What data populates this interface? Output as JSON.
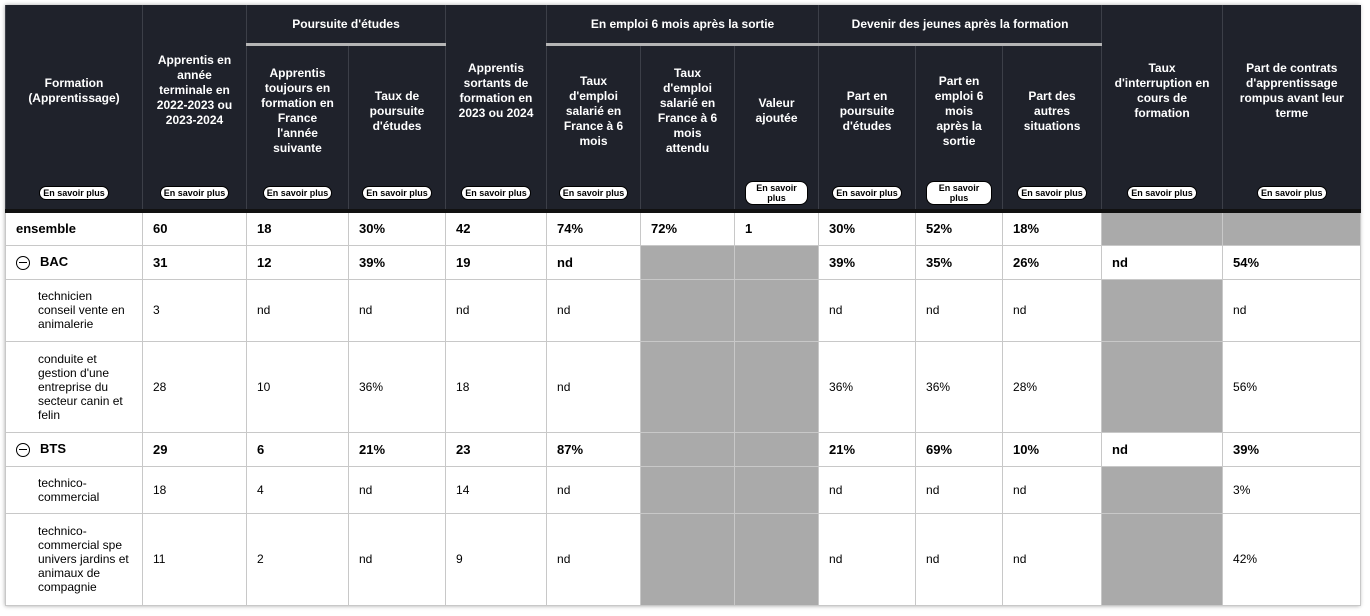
{
  "header": {
    "groups": [
      {
        "label": "Poursuite d'études",
        "start": 2,
        "span": 2
      },
      {
        "label": "En emploi 6 mois après la sortie",
        "start": 5,
        "span": 3
      },
      {
        "label": "Devenir des jeunes après la formation",
        "start": 8,
        "span": 3
      }
    ],
    "columns": [
      "Formation (Apprentissage)",
      "Apprentis en année terminale en 2022-2023 ou 2023-2024",
      "Apprentis toujours en formation en France l'année suivante",
      "Taux de poursuite d'études",
      "Apprentis sortants de formation en 2023 ou 2024",
      "Taux d'emploi salarié en France à 6 mois",
      "Taux d'emploi salarié en France à 6 mois attendu",
      "Valeur ajoutée",
      "Part en poursuite d'études",
      "Part en emploi 6 mois après la sortie",
      "Part des autres situations",
      "Taux d'interruption en cours de formation",
      "Part de contrats d'apprentissage rompus avant leur terme"
    ],
    "more": [
      "En savoir plus",
      "En savoir plus",
      "En savoir plus",
      "En savoir plus",
      "En savoir plus",
      "En savoir plus",
      null,
      "En savoir plus",
      "En savoir plus",
      "En savoir plus",
      "En savoir plus",
      "En savoir plus",
      "En savoir plus"
    ]
  },
  "table": {
    "rows": [
      {
        "label": "ensemble",
        "level": 0,
        "cells": [
          60,
          18,
          "30%",
          42,
          "74%",
          "72%",
          1,
          "30%",
          "52%",
          "18%",
          null,
          null
        ]
      },
      {
        "label": "BAC",
        "level": 1,
        "cells": [
          31,
          12,
          "39%",
          19,
          "nd",
          null,
          null,
          "39%",
          "35%",
          "26%",
          "nd",
          "54%"
        ]
      },
      {
        "label": "technicien conseil vente en animalerie",
        "level": 2,
        "cells": [
          3,
          "nd",
          "nd",
          "nd",
          "nd",
          null,
          null,
          "nd",
          "nd",
          "nd",
          null,
          "nd"
        ]
      },
      {
        "label": "conduite et gestion d'une entreprise du secteur canin et felin",
        "level": 2,
        "cells": [
          28,
          10,
          "36%",
          18,
          "nd",
          null,
          null,
          "36%",
          "36%",
          "28%",
          null,
          "56%"
        ]
      },
      {
        "label": "BTS",
        "level": 1,
        "cells": [
          29,
          6,
          "21%",
          23,
          "87%",
          null,
          null,
          "21%",
          "69%",
          "10%",
          "nd",
          "39%"
        ]
      },
      {
        "label": "technico-commercial",
        "level": 2,
        "cells": [
          18,
          4,
          "nd",
          14,
          "nd",
          null,
          null,
          "nd",
          "nd",
          "nd",
          null,
          "3%"
        ]
      },
      {
        "label": "technico-commercial spe univers jardins et animaux de compagnie",
        "level": 2,
        "cells": [
          11,
          2,
          "nd",
          9,
          "nd",
          null,
          null,
          "nd",
          "nd",
          "nd",
          null,
          "42%"
        ]
      }
    ]
  }
}
